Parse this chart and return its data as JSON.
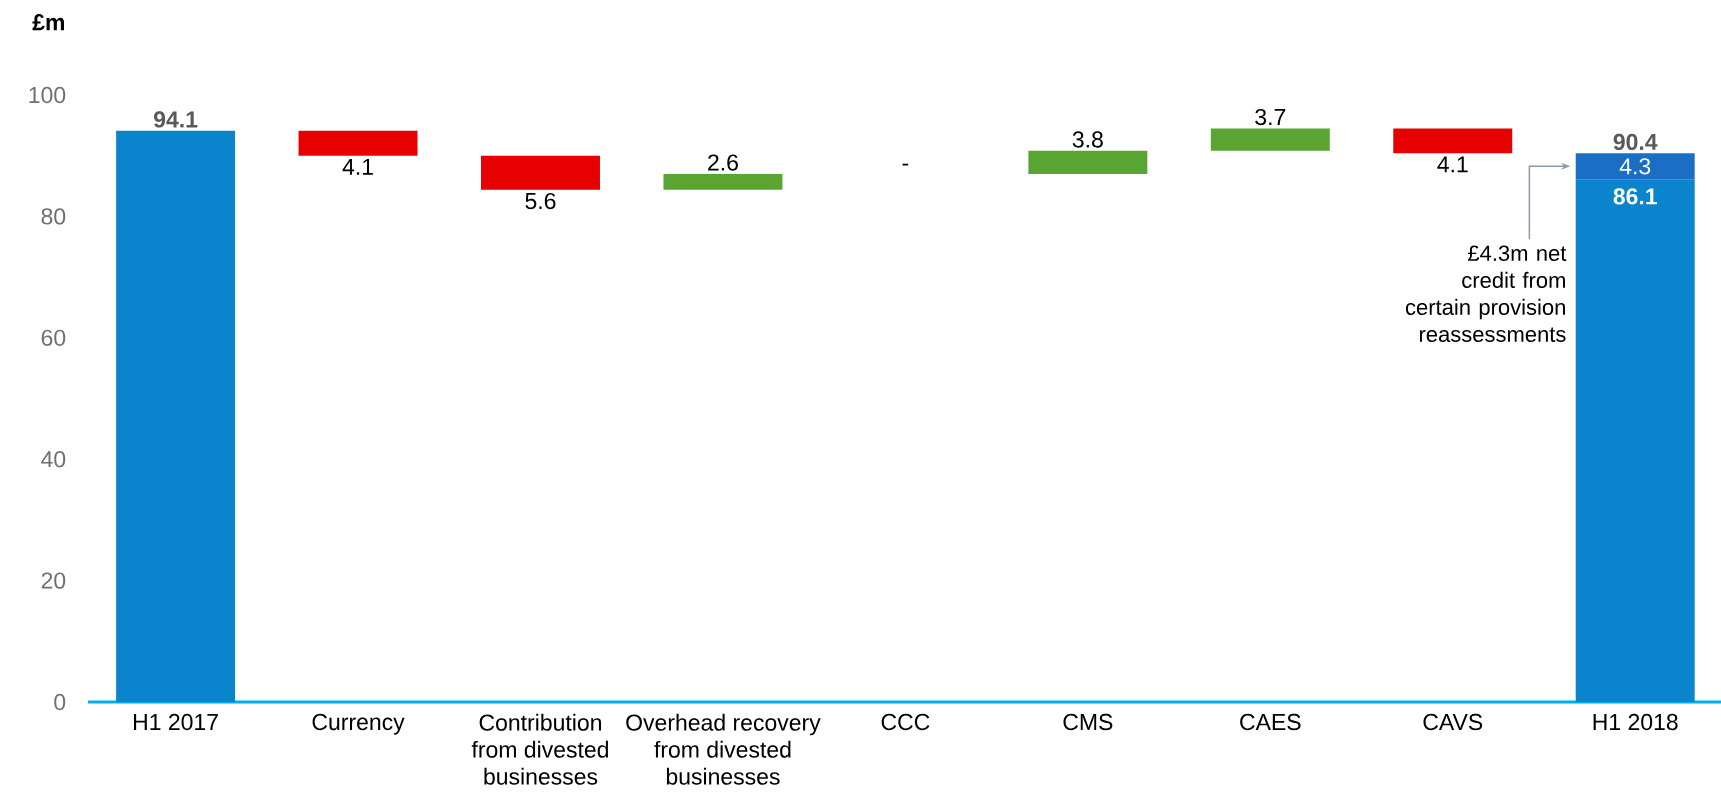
{
  "chart_data": {
    "type": "bar",
    "ylabel": "£m",
    "categories": [
      "H1 2017",
      "Currency",
      "Contribution from divested businesses",
      "Overhead recovery from divested businesses",
      "CCC",
      "CMS",
      "CAES",
      "CAVS",
      "H1 2018"
    ],
    "series": [
      {
        "colors": [
          "#0a84cc",
          "#e60000",
          "#e60000",
          "#5aa532",
          "#5aa532",
          "#5aa532",
          "#5aa532",
          "#e60000",
          "#0a84cc"
        ],
        "values": [
          94.1,
          -4.1,
          -5.6,
          2.6,
          null,
          3.8,
          3.7,
          -4.1,
          86.1
        ],
        "base": [
          0,
          94.1,
          90.0,
          84.4,
          null,
          87.0,
          90.8,
          94.5,
          0
        ],
        "value_labels": [
          "94.1",
          "4.1",
          "5.6",
          "2.6",
          "-",
          "3.8",
          "3.7",
          "4.1",
          "86.1"
        ]
      },
      {
        "color": "#1a6fc4",
        "values": [
          null,
          null,
          null,
          null,
          null,
          null,
          null,
          null,
          4.3
        ],
        "base": [
          null,
          null,
          null,
          null,
          null,
          null,
          null,
          null,
          86.1
        ],
        "value_labels": [
          null,
          null,
          null,
          null,
          null,
          null,
          null,
          null,
          "4.3"
        ]
      }
    ],
    "totals": [
      null,
      null,
      null,
      null,
      null,
      null,
      null,
      null,
      "90.4"
    ],
    "ylim": [
      0,
      100
    ],
    "yticks": [
      0,
      20,
      40,
      60,
      80,
      100
    ],
    "annotations": [
      "£4.3m net credit from certain provision reassessments"
    ]
  }
}
